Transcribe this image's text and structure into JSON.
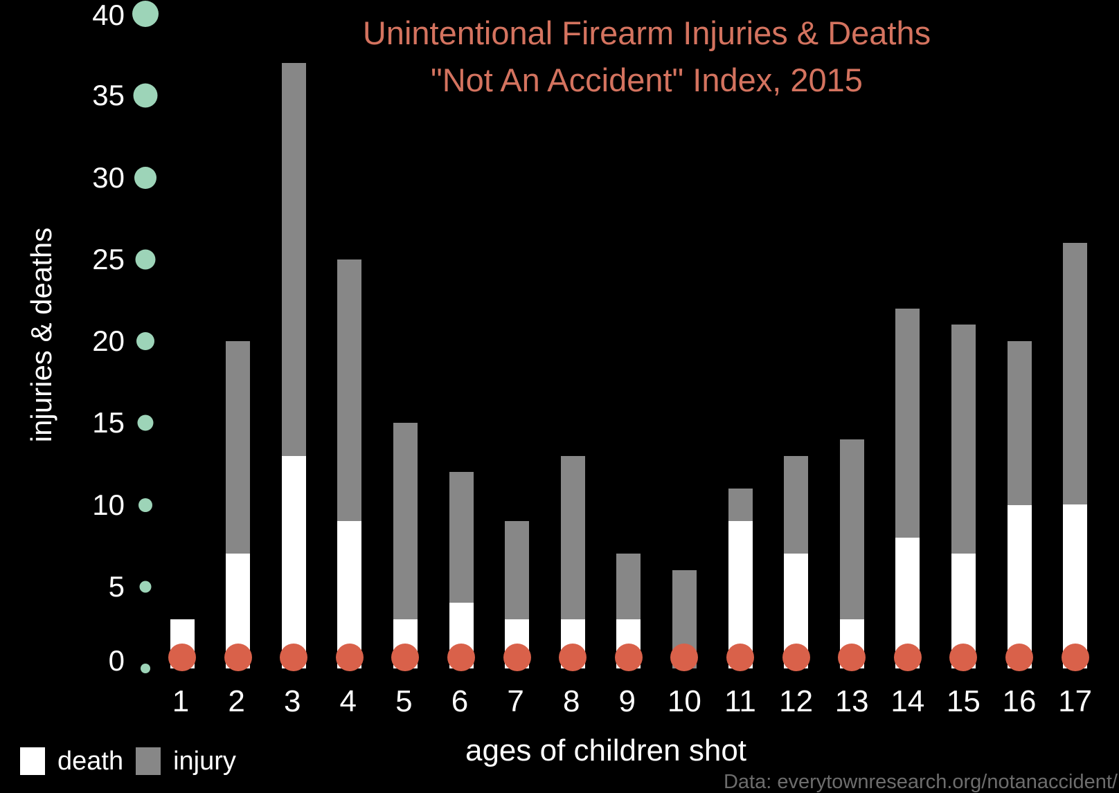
{
  "chart_data": {
    "type": "bar",
    "stacked": true,
    "title": "Unintentional Firearm Injuries & Deaths",
    "subtitle": "\"Not An Accident\" Index, 2015",
    "xlabel": "ages of children shot",
    "ylabel": "injuries & deaths",
    "ylim": [
      0,
      40
    ],
    "yticks": [
      0,
      5,
      10,
      15,
      20,
      25,
      30,
      35,
      40
    ],
    "categories": [
      "1",
      "2",
      "3",
      "4",
      "5",
      "6",
      "7",
      "8",
      "9",
      "10",
      "11",
      "12",
      "13",
      "14",
      "15",
      "16",
      "17"
    ],
    "series": [
      {
        "name": "death",
        "color": "#ffffff",
        "values": [
          3,
          7,
          13,
          9,
          3,
          4,
          3,
          3,
          3,
          0,
          9,
          7,
          3,
          8,
          7,
          10,
          10
        ]
      },
      {
        "name": "injury",
        "color": "#878787",
        "values": [
          0,
          13,
          24,
          16,
          12,
          8,
          6,
          10,
          4,
          6,
          2,
          6,
          11,
          14,
          14,
          10,
          16
        ]
      }
    ],
    "totals": [
      3,
      20,
      37,
      25,
      15,
      12,
      9,
      13,
      7,
      6,
      11,
      13,
      14,
      22,
      21,
      20,
      26
    ],
    "legend": {
      "position": "bottom-left",
      "entries": [
        "death",
        "injury"
      ]
    },
    "grid": false,
    "source": "Data: everytownresearch.org/notanaccident/"
  },
  "colors": {
    "background": "#000000",
    "title": "#d4735f",
    "death": "#ffffff",
    "injury": "#878787",
    "baseline_dot": "#d9614a",
    "ytick_dot": "#9dd4b8"
  },
  "labels": {
    "title_line1": "Unintentional Firearm Injuries & Deaths",
    "title_line2": "\"Not An Accident\" Index, 2015",
    "ylabel": "injuries & deaths",
    "xlabel": "ages of children shot",
    "legend_death": "death",
    "legend_injury": "injury",
    "source": "Data: everytownresearch.org/notanaccident/"
  }
}
